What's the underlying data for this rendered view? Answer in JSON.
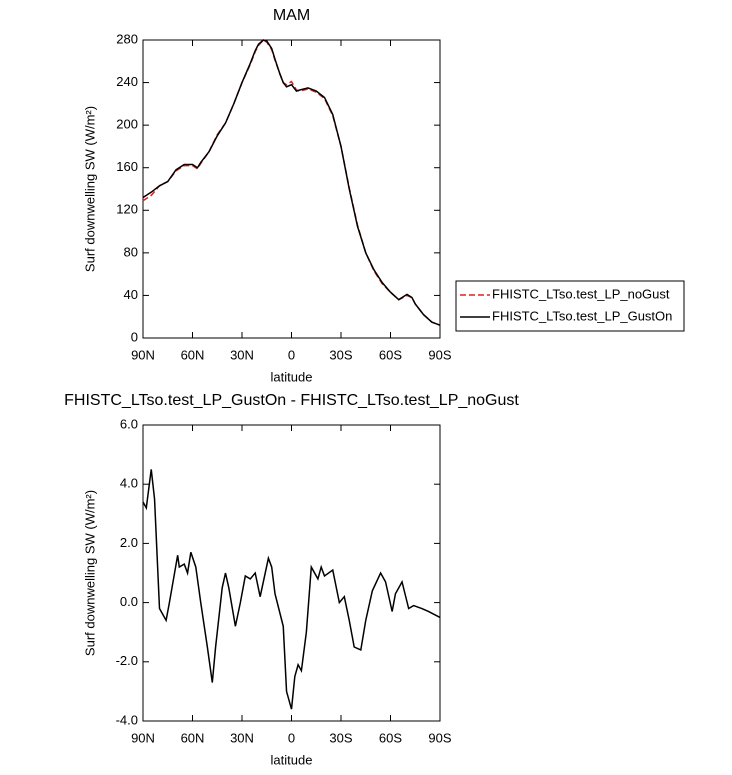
{
  "chart_data": [
    {
      "type": "line",
      "title": "MAM",
      "xlabel": "latitude",
      "ylabel": "Surf downwelling SW (W/m²)",
      "x": [
        90,
        85,
        80,
        75,
        70,
        65,
        60,
        57,
        55,
        50,
        45,
        40,
        35,
        30,
        25,
        22,
        20,
        17,
        15,
        12,
        10,
        7,
        5,
        3,
        0,
        -3,
        -5,
        -10,
        -15,
        -20,
        -25,
        -30,
        -35,
        -40,
        -45,
        -50,
        -55,
        -60,
        -65,
        -70,
        -73,
        -75,
        -80,
        -85,
        -90
      ],
      "series": [
        {
          "name": "FHISTC_LTso.test_LP_noGust",
          "color": "#e0201b",
          "dash": true,
          "values": [
            129,
            134,
            143,
            147,
            157,
            162,
            162,
            159,
            164,
            175,
            191,
            202,
            220,
            240,
            257,
            269,
            275,
            280,
            278,
            271,
            261,
            248,
            240,
            238,
            241,
            233,
            232,
            234,
            231,
            225,
            209,
            180,
            141,
            106,
            80,
            63,
            51,
            43,
            36,
            40,
            38,
            32,
            22,
            15,
            12
          ]
        },
        {
          "name": "FHISTC_LTso.test_LP_GustOn",
          "color": "#000000",
          "dash": false,
          "values": [
            132,
            137,
            143,
            147,
            158,
            163,
            163,
            160,
            165,
            175,
            190,
            202,
            220,
            240,
            258,
            270,
            276,
            280,
            279,
            272,
            262,
            248,
            240,
            236,
            238,
            232,
            233,
            235,
            232,
            226,
            210,
            180,
            140,
            105,
            80,
            64,
            52,
            43,
            36,
            41,
            38,
            32,
            22,
            15,
            12
          ]
        }
      ],
      "xlim": [
        90,
        -90
      ],
      "xticks": [
        {
          "value": 90,
          "label": "90N"
        },
        {
          "value": 60,
          "label": "60N"
        },
        {
          "value": 30,
          "label": "30N"
        },
        0,
        {
          "value": -30,
          "label": "30S"
        },
        {
          "value": -60,
          "label": "60S"
        },
        {
          "value": -90,
          "label": "90S"
        }
      ],
      "ylim": [
        0,
        280
      ],
      "yticks": [
        0,
        40,
        80,
        120,
        160,
        200,
        240,
        280
      ],
      "legend": "right"
    },
    {
      "type": "line",
      "title": "FHISTC_LTso.test_LP_GustOn - FHISTC_LTso.test_LP_noGust",
      "xlabel": "latitude",
      "ylabel": "Surf downwelling SW (W/m²)",
      "x": [
        90,
        88,
        85,
        83,
        80,
        76,
        74,
        69,
        68,
        65,
        63,
        61,
        58,
        55,
        51,
        48,
        46,
        42,
        40,
        38,
        34,
        31,
        28,
        25,
        22,
        19,
        14,
        12,
        10,
        5,
        3,
        0,
        -2,
        -4,
        -6,
        -9,
        -12,
        -16,
        -18,
        -20,
        -25,
        -29,
        -32,
        -35,
        -38,
        -42,
        -45,
        -49,
        -54,
        -57,
        -61,
        -63,
        -67,
        -71,
        -74,
        -79,
        -83,
        -90
      ],
      "series": [
        {
          "color": "#000000",
          "dash": false,
          "values": [
            3.4,
            3.2,
            4.5,
            3.5,
            -0.2,
            -0.6,
            0.0,
            1.6,
            1.2,
            1.3,
            1.0,
            1.7,
            1.2,
            0.0,
            -1.5,
            -2.7,
            -1.5,
            0.5,
            1.0,
            0.5,
            -0.8,
            0.0,
            0.9,
            0.8,
            1.0,
            0.2,
            1.5,
            1.2,
            0.3,
            -0.8,
            -3.0,
            -3.6,
            -2.5,
            -2.1,
            -2.3,
            -1.0,
            1.2,
            0.8,
            1.2,
            0.9,
            1.1,
            0.0,
            0.2,
            -0.6,
            -1.5,
            -1.6,
            -0.6,
            0.4,
            1.0,
            0.7,
            -0.3,
            0.3,
            0.7,
            -0.2,
            -0.1,
            -0.2,
            -0.3,
            -0.5
          ]
        }
      ],
      "xlim": [
        90,
        -90
      ],
      "xticks": [
        {
          "value": 90,
          "label": "90N"
        },
        {
          "value": 60,
          "label": "60N"
        },
        {
          "value": 30,
          "label": "30N"
        },
        0,
        {
          "value": -30,
          "label": "30S"
        },
        {
          "value": -60,
          "label": "60S"
        },
        {
          "value": -90,
          "label": "90S"
        }
      ],
      "ylim": [
        -4,
        6
      ],
      "yticks": [
        {
          "value": -4,
          "label": "-4.0"
        },
        {
          "value": -2,
          "label": "-2.0"
        },
        {
          "value": 0,
          "label": "0.0"
        },
        {
          "value": 2,
          "label": "2.0"
        },
        {
          "value": 4,
          "label": "4.0"
        },
        {
          "value": 6,
          "label": "6.0"
        }
      ]
    }
  ]
}
